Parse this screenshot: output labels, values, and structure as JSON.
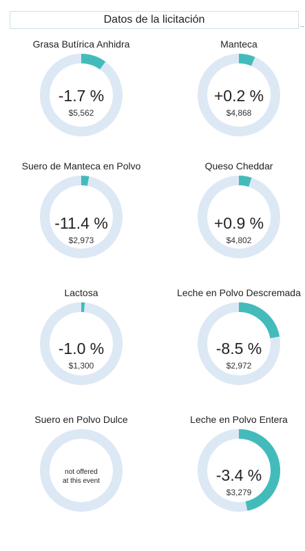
{
  "header": {
    "title": "Datos de la licitación"
  },
  "colors": {
    "track": "#dde8f5",
    "fill": "#44bbbb"
  },
  "products": [
    {
      "name": "Grasa Butírica Anhidra",
      "change_pct": -1.7,
      "change_label": "-1.7 %",
      "price": "$5,562",
      "offered": true
    },
    {
      "name": "Manteca",
      "change_pct": 0.2,
      "change_label": "+0.2 %",
      "price": "$4,868",
      "offered": true
    },
    {
      "name": "Suero de Manteca en Polvo",
      "change_pct": -11.4,
      "change_label": "-11.4 %",
      "price": "$2,973",
      "offered": true
    },
    {
      "name": "Queso Cheddar",
      "change_pct": 0.9,
      "change_label": "+0.9 %",
      "price": "$4,802",
      "offered": true
    },
    {
      "name": "Lactosa",
      "change_pct": -1.0,
      "change_label": "-1.0 %",
      "price": "$1,300",
      "offered": true
    },
    {
      "name": "Leche en Polvo Descremada",
      "change_pct": -8.5,
      "change_label": "-8.5 %",
      "price": "$2,972",
      "offered": true
    },
    {
      "name": "Suero en Polvo Dulce",
      "offered": false,
      "not_offered_line1": "not offered",
      "not_offered_line2": "at this event"
    },
    {
      "name": "Leche en Polvo Entera",
      "change_pct": -3.4,
      "change_label": "-3.4 %",
      "price": "$3,279",
      "offered": true
    }
  ],
  "gauge_arcs_deg": [
    36,
    23,
    11,
    18,
    5,
    80,
    0,
    168
  ]
}
